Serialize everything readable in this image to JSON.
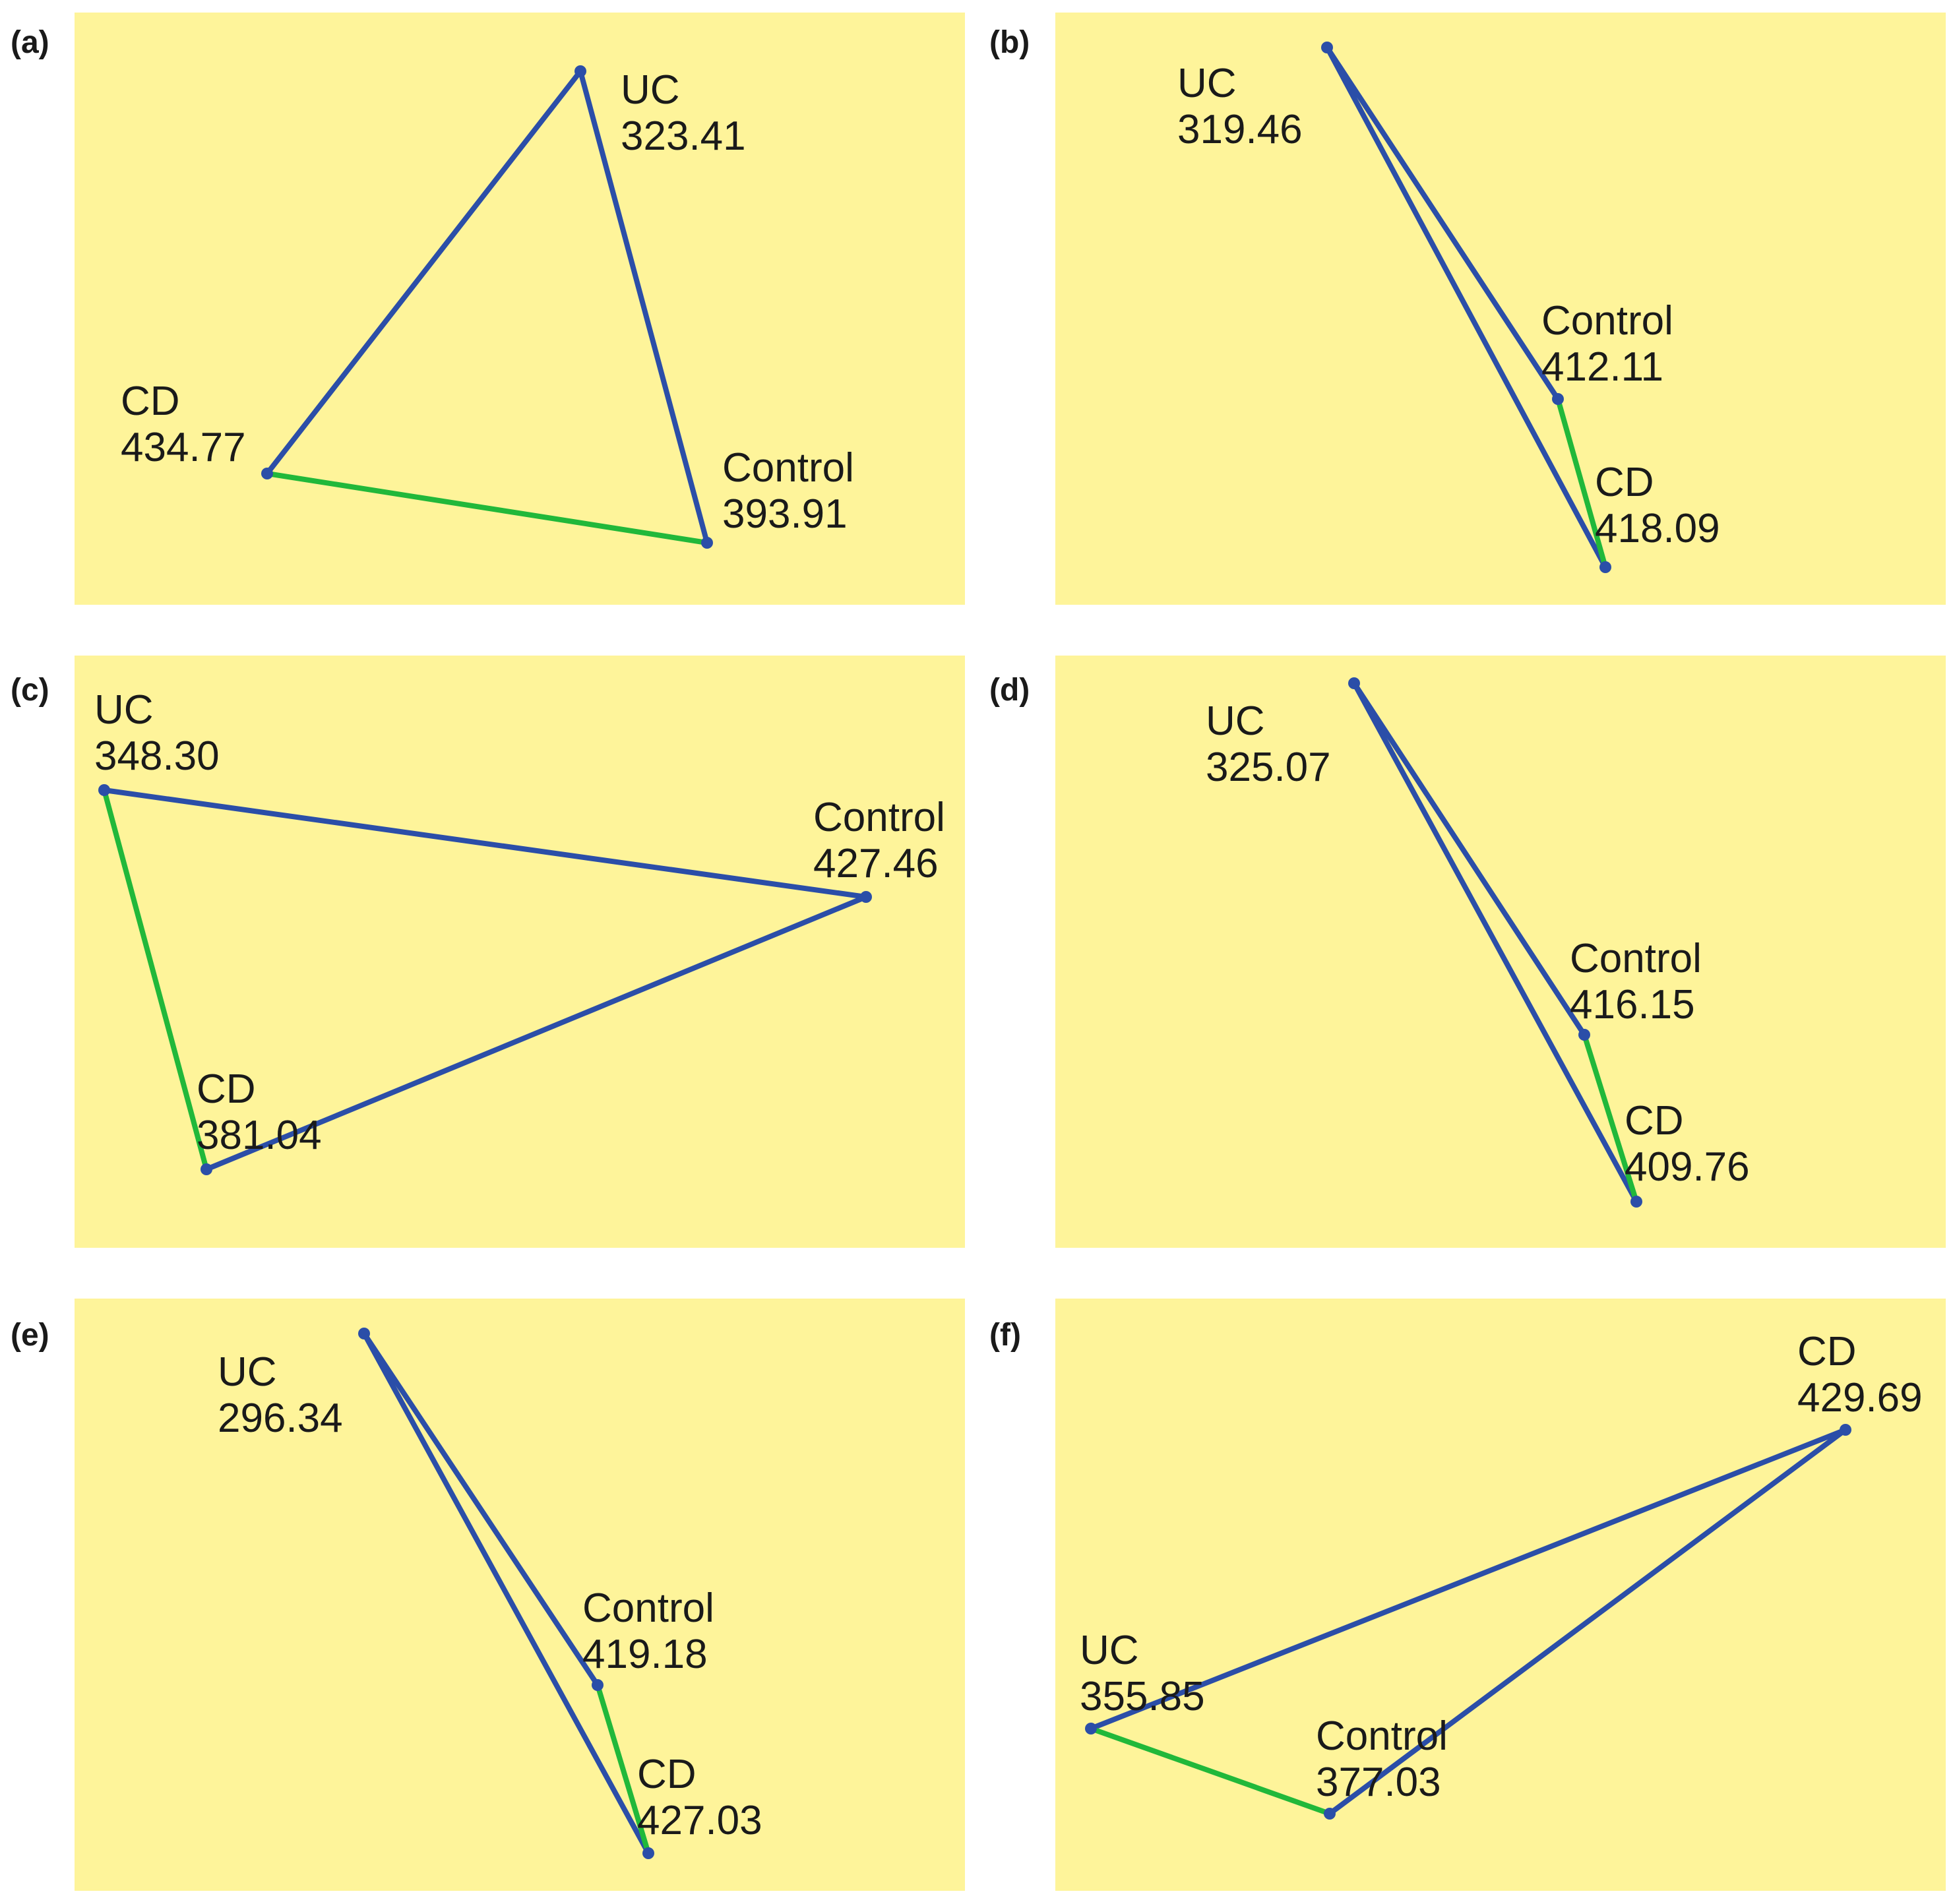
{
  "colors": {
    "background": "#fef49a",
    "edge_blue": "#2b4ea8",
    "edge_green": "#21b83a",
    "node": "#2b4ea8",
    "text": "#1a1a1a"
  },
  "panels": [
    {
      "letter": "(a)",
      "nodes": [
        {
          "id": "UC",
          "name": "UC",
          "value": "323.41"
        },
        {
          "id": "CD",
          "name": "CD",
          "value": "434.77"
        },
        {
          "id": "Control",
          "name": "Control",
          "value": "393.91"
        }
      ],
      "edges": [
        {
          "from": "UC",
          "to": "CD",
          "color": "blue"
        },
        {
          "from": "UC",
          "to": "Control",
          "color": "blue"
        },
        {
          "from": "CD",
          "to": "Control",
          "color": "green"
        }
      ]
    },
    {
      "letter": "(b)",
      "nodes": [
        {
          "id": "UC",
          "name": "UC",
          "value": "319.46"
        },
        {
          "id": "Control",
          "name": "Control",
          "value": "412.11"
        },
        {
          "id": "CD",
          "name": "CD",
          "value": "418.09"
        }
      ],
      "edges": [
        {
          "from": "UC",
          "to": "Control",
          "color": "blue"
        },
        {
          "from": "UC",
          "to": "CD",
          "color": "blue"
        },
        {
          "from": "Control",
          "to": "CD",
          "color": "green"
        }
      ]
    },
    {
      "letter": "(c)",
      "nodes": [
        {
          "id": "UC",
          "name": "UC",
          "value": "348.30"
        },
        {
          "id": "Control",
          "name": "Control",
          "value": "427.46"
        },
        {
          "id": "CD",
          "name": "CD",
          "value": "381.04"
        }
      ],
      "edges": [
        {
          "from": "UC",
          "to": "Control",
          "color": "blue"
        },
        {
          "from": "CD",
          "to": "Control",
          "color": "blue"
        },
        {
          "from": "UC",
          "to": "CD",
          "color": "green"
        }
      ]
    },
    {
      "letter": "(d)",
      "nodes": [
        {
          "id": "UC",
          "name": "UC",
          "value": "325.07"
        },
        {
          "id": "Control",
          "name": "Control",
          "value": "416.15"
        },
        {
          "id": "CD",
          "name": "CD",
          "value": "409.76"
        }
      ],
      "edges": [
        {
          "from": "UC",
          "to": "Control",
          "color": "blue"
        },
        {
          "from": "UC",
          "to": "CD",
          "color": "blue"
        },
        {
          "from": "Control",
          "to": "CD",
          "color": "green"
        }
      ]
    },
    {
      "letter": "(e)",
      "nodes": [
        {
          "id": "UC",
          "name": "UC",
          "value": "296.34"
        },
        {
          "id": "Control",
          "name": "Control",
          "value": "419.18"
        },
        {
          "id": "CD",
          "name": "CD",
          "value": "427.03"
        }
      ],
      "edges": [
        {
          "from": "UC",
          "to": "Control",
          "color": "blue"
        },
        {
          "from": "UC",
          "to": "CD",
          "color": "blue"
        },
        {
          "from": "Control",
          "to": "CD",
          "color": "green"
        }
      ]
    },
    {
      "letter": "(f)",
      "nodes": [
        {
          "id": "CD",
          "name": "CD",
          "value": "429.69"
        },
        {
          "id": "UC",
          "name": "UC",
          "value": "355.85"
        },
        {
          "id": "Control",
          "name": "Control",
          "value": "377.03"
        }
      ],
      "edges": [
        {
          "from": "UC",
          "to": "CD",
          "color": "blue"
        },
        {
          "from": "Control",
          "to": "CD",
          "color": "blue"
        },
        {
          "from": "UC",
          "to": "Control",
          "color": "green"
        }
      ]
    }
  ]
}
